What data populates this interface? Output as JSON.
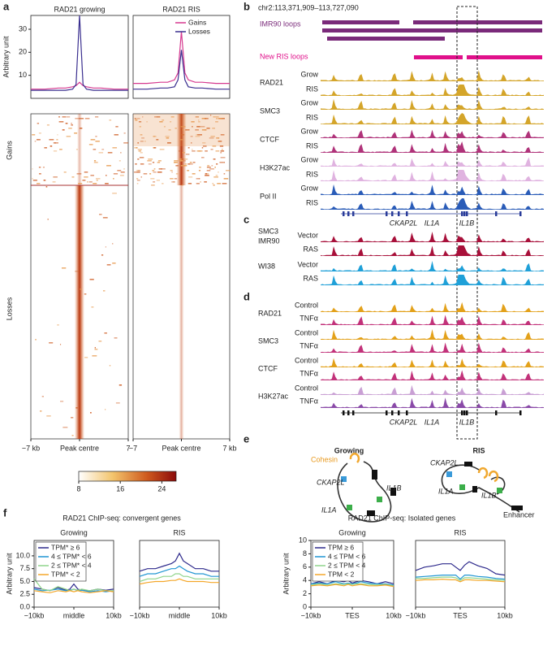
{
  "chart_data": [
    {
      "type": "line",
      "title": "RAD21 growing",
      "ylabel": "Arbitrary unit",
      "x": [
        -7,
        -5,
        -3,
        -2,
        -1,
        -0.5,
        0,
        0.5,
        1,
        2,
        3,
        5,
        7
      ],
      "xlim": [
        -7,
        7
      ],
      "xticks": [
        {
          "value": -7,
          "label": "−7 kb"
        },
        {
          "value": 0,
          "label": "Peak centre"
        },
        {
          "value": 7,
          "label": "7"
        }
      ],
      "ylim": [
        0,
        36
      ],
      "yticks": [
        10,
        20,
        30
      ],
      "series": [
        {
          "color": "#d6398f",
          "values": [
            4,
            4,
            4.5,
            4.5,
            5,
            5.5,
            7,
            5.5,
            5,
            4.5,
            4.5,
            4,
            4
          ]
        },
        {
          "color": "#3a2f8f",
          "values": [
            3.5,
            3.5,
            3.5,
            3.5,
            4,
            6,
            36,
            6,
            4,
            3.5,
            3.5,
            3.5,
            3.5
          ]
        }
      ]
    },
    {
      "type": "line",
      "title": "RAD21 RIS",
      "x": [
        -7,
        -5,
        -3,
        -2,
        -1,
        -0.5,
        0,
        0.5,
        1,
        2,
        3,
        5,
        7
      ],
      "xlim": [
        -7,
        7
      ],
      "xticks": [
        {
          "value": -7,
          "label": "−7"
        },
        {
          "value": 0,
          "label": "Peak centre"
        },
        {
          "value": 7,
          "label": "7 kb"
        }
      ],
      "ylim": [
        0,
        36
      ],
      "legend": "upper right",
      "series": [
        {
          "name": "Gains",
          "color": "#d6398f",
          "values": [
            6.5,
            6.5,
            7,
            7,
            8,
            11,
            29,
            11,
            8,
            7,
            7,
            6.5,
            6.5
          ]
        },
        {
          "name": "Losses",
          "color": "#3a2f8f",
          "values": [
            4,
            4,
            4.5,
            4.5,
            5,
            8,
            21,
            8,
            5,
            4.5,
            4.5,
            4,
            4
          ]
        }
      ]
    },
    {
      "type": "line",
      "title": "Growing",
      "ylabel": "Arbitrary unit",
      "x": [
        -10,
        -8,
        -6,
        -4,
        -2,
        -1,
        0,
        1,
        2,
        4,
        6,
        8,
        10
      ],
      "xlim": [
        -10,
        10
      ],
      "xticks": [
        {
          "value": -10,
          "label": "−10kb"
        },
        {
          "value": 0,
          "label": "middle"
        },
        {
          "value": 10,
          "label": "10kb"
        }
      ],
      "ylim": [
        0,
        13
      ],
      "yticks": [
        {
          "value": 0,
          "label": "0.0"
        },
        2.5,
        {
          "value": 5,
          "label": "5.0"
        },
        7.5,
        {
          "value": 10,
          "label": "10.0"
        }
      ],
      "legend": "upper left",
      "series": [
        {
          "name": "TPM* ≥ 6",
          "color": "#2e2a8c",
          "values": [
            3.8,
            3.5,
            3.2,
            3.8,
            3.3,
            3.5,
            4.5,
            3.5,
            3.3,
            3.2,
            3.5,
            3.3,
            3.5
          ]
        },
        {
          "name": "4 ≤ TPM* < 6",
          "color": "#2196d3",
          "values": [
            3.5,
            3.2,
            3.3,
            3.5,
            3.2,
            3.3,
            3.5,
            3.2,
            3.3,
            3,
            3.2,
            3,
            3.2
          ]
        },
        {
          "name": "2 ≤ TPM* < 4",
          "color": "#8fd48a",
          "values": [
            5.5,
            3.5,
            3.2,
            4,
            3.5,
            3.2,
            3.5,
            3.3,
            3.5,
            3.2,
            3.5,
            3.2,
            3.2
          ]
        },
        {
          "name": "TPM* < 2",
          "color": "#f4a72a",
          "values": [
            3.2,
            3,
            2.8,
            3.2,
            3,
            3.2,
            3,
            3.2,
            3,
            2.8,
            3,
            3.2,
            3
          ]
        }
      ]
    },
    {
      "type": "line",
      "title": "RIS",
      "x": [
        -10,
        -8,
        -6,
        -4,
        -2,
        -1,
        0,
        1,
        2,
        4,
        6,
        8,
        10
      ],
      "xlim": [
        -10,
        10
      ],
      "xticks": [
        {
          "value": -10,
          "label": "−10kb"
        },
        {
          "value": 0,
          "label": "middle"
        },
        {
          "value": 10,
          "label": "10kb"
        }
      ],
      "ylim": [
        0,
        13
      ],
      "series": [
        {
          "color": "#2e2a8c",
          "values": [
            7,
            7.5,
            7.5,
            8,
            8.5,
            9,
            10.5,
            9,
            8.5,
            7.5,
            7.5,
            7,
            7
          ]
        },
        {
          "color": "#2196d3",
          "values": [
            6,
            6.5,
            6.5,
            7,
            7.5,
            7.5,
            8,
            7.5,
            7,
            6.5,
            6.5,
            6,
            6
          ]
        },
        {
          "color": "#8fd48a",
          "values": [
            5,
            5.5,
            5.5,
            6,
            6,
            6.5,
            6.5,
            6,
            6,
            5.5,
            5.5,
            5.5,
            5.5
          ]
        },
        {
          "color": "#f4a72a",
          "values": [
            4.5,
            4.8,
            5,
            5,
            5.2,
            5.2,
            5.5,
            5.2,
            5,
            5,
            5,
            4.8,
            4.8
          ]
        }
      ]
    },
    {
      "type": "line",
      "title": "Growing",
      "ylabel": "Arbitrary unit",
      "x": [
        -10,
        -8,
        -6,
        -4,
        -2,
        -1,
        0,
        1,
        2,
        4,
        6,
        8,
        10
      ],
      "xlim": [
        -10,
        10
      ],
      "xticks": [
        {
          "value": -10,
          "label": "−10kb"
        },
        {
          "value": 0,
          "label": "TES"
        },
        {
          "value": 10,
          "label": "10kb"
        }
      ],
      "ylim": [
        0,
        10
      ],
      "yticks": [
        0,
        2,
        4,
        6,
        8,
        10
      ],
      "legend": "upper left",
      "series": [
        {
          "name": "TPM ≥ 6",
          "color": "#2e2a8c",
          "values": [
            3.5,
            3.8,
            3.5,
            4,
            3.8,
            4,
            3.6,
            3.8,
            4,
            3.8,
            3.5,
            3.8,
            3.5
          ]
        },
        {
          "name": "4 ≤ TPM < 6",
          "color": "#2196d3",
          "values": [
            3.5,
            3.6,
            3.5,
            3.8,
            3.5,
            3.6,
            3.5,
            3.6,
            3.8,
            3.6,
            3.5,
            3.5,
            3.3
          ]
        },
        {
          "name": "2 ≤ TPM < 4",
          "color": "#8fd48a",
          "values": [
            3.3,
            3.5,
            3.3,
            3.5,
            3.4,
            3.5,
            3.4,
            3.5,
            3.5,
            3.4,
            3.3,
            3.4,
            3.2
          ]
        },
        {
          "name": "TPM < 2",
          "color": "#f4a72a",
          "values": [
            3.2,
            3.3,
            3.2,
            3.4,
            3.2,
            3.4,
            3.2,
            3.3,
            3.4,
            3.2,
            3.2,
            3.3,
            3.1
          ]
        }
      ]
    },
    {
      "type": "line",
      "title": "RIS",
      "x": [
        -10,
        -8,
        -6,
        -4,
        -2,
        -1,
        0,
        1,
        2,
        4,
        6,
        8,
        10
      ],
      "xlim": [
        -10,
        10
      ],
      "xticks": [
        {
          "value": -10,
          "label": "−10kb"
        },
        {
          "value": 0,
          "label": "TES"
        },
        {
          "value": 10,
          "label": "10kb"
        }
      ],
      "ylim": [
        0,
        10
      ],
      "series": [
        {
          "color": "#2e2a8c",
          "values": [
            5.5,
            6,
            6.2,
            6.5,
            6.5,
            6,
            5.5,
            6.3,
            6.8,
            6.2,
            5.8,
            5,
            4.8
          ]
        },
        {
          "color": "#2196d3",
          "values": [
            4.5,
            4.6,
            4.7,
            4.8,
            4.8,
            4.8,
            4.2,
            4.8,
            4.8,
            4.6,
            4.5,
            4.3,
            4.2
          ]
        },
        {
          "color": "#8fd48a",
          "values": [
            4.3,
            4.3,
            4.4,
            4.5,
            4.5,
            4.4,
            4,
            4.4,
            4.4,
            4.3,
            4.2,
            4.1,
            4
          ]
        },
        {
          "color": "#f4a72a",
          "values": [
            4,
            4.1,
            4.1,
            4.2,
            4.1,
            4.1,
            3.8,
            4.1,
            4.1,
            4,
            4,
            3.9,
            3.8
          ]
        }
      ]
    }
  ],
  "panel_a": {
    "letter": "a",
    "row_labels": [
      "Gains",
      "Losses"
    ],
    "colorbar_ticks": [
      8,
      16,
      24
    ]
  },
  "panel_b": {
    "letter": "b",
    "coords": "chr2:113,371,909–113,727,090",
    "loops": [
      "IMR90 loops",
      "New RIS loops"
    ],
    "tracks": [
      {
        "name": "RAD21",
        "rows": [
          "Grow",
          "RIS"
        ]
      },
      {
        "name": "SMC3",
        "rows": [
          "Grow",
          "RIS"
        ]
      },
      {
        "name": "CTCF",
        "rows": [
          "Grow",
          "RIS"
        ]
      },
      {
        "name": "H3K27ac",
        "rows": [
          "Grow",
          "RIS"
        ]
      },
      {
        "name": "Pol II",
        "rows": [
          "Grow",
          "RIS"
        ]
      }
    ],
    "genes": [
      "CKAP2L",
      "IL1A",
      "IL1B"
    ]
  },
  "panel_c": {
    "letter": "c",
    "factor": "SMC3",
    "lines": [
      {
        "name": "IMR90",
        "rows": [
          "Vector",
          "RAS"
        ]
      },
      {
        "name": "WI38",
        "rows": [
          "Vector",
          "RAS"
        ]
      }
    ]
  },
  "panel_d": {
    "letter": "d",
    "tracks": [
      {
        "name": "RAD21",
        "rows": [
          "Control",
          "TNFα"
        ]
      },
      {
        "name": "SMC3",
        "rows": [
          "Control",
          "TNFα"
        ]
      },
      {
        "name": "CTCF",
        "rows": [
          "Control",
          "TNFα"
        ]
      },
      {
        "name": "H3K27ac",
        "rows": [
          "Control",
          "TNFα"
        ]
      }
    ],
    "genes": [
      "CKAP2L",
      "IL1A",
      "IL1B"
    ]
  },
  "panel_e": {
    "letter": "e",
    "growing": {
      "title": "Growing",
      "labels": [
        "Cohesin",
        "CKAP2L",
        "IL1B",
        "IL1A"
      ]
    },
    "ris": {
      "title": "RIS",
      "labels": [
        "CKAP2L",
        "IL1A",
        "IL1B",
        "Enhancer"
      ]
    }
  },
  "panel_f": {
    "letter": "f",
    "titles": [
      "RAD21 ChIP-seq: convergent genes",
      "RAD21 ChIP-seq: Isolated genes"
    ]
  }
}
